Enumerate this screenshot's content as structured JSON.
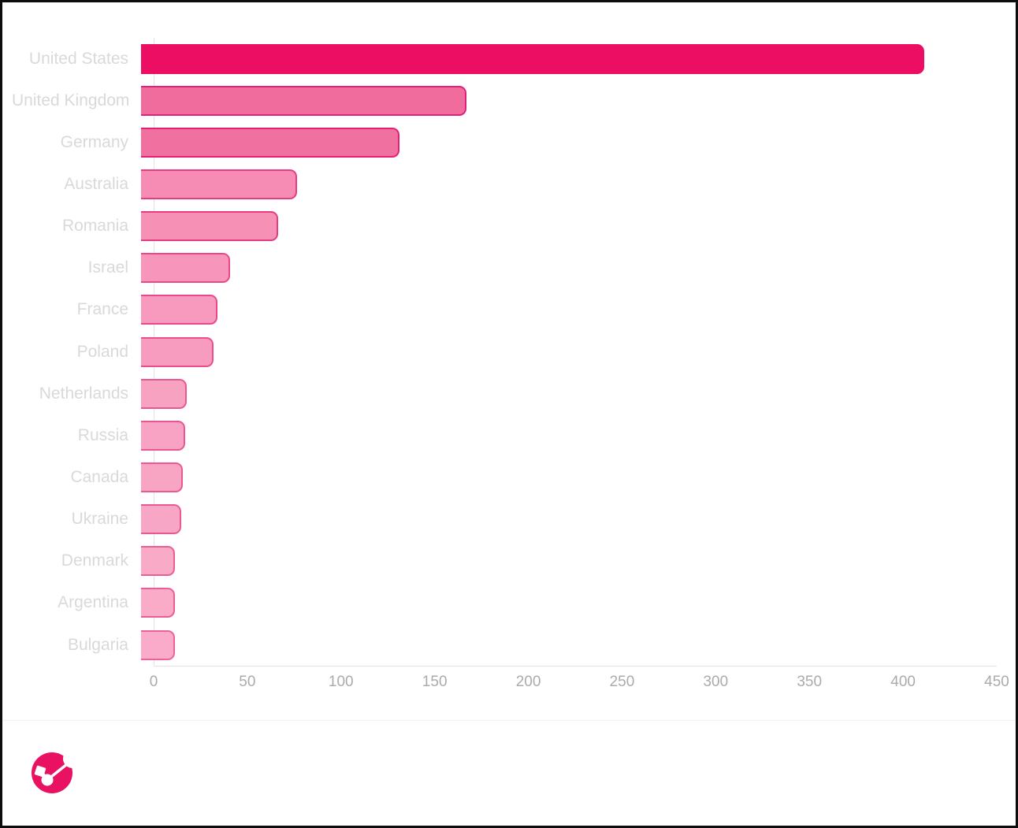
{
  "chart_data": {
    "type": "bar",
    "orientation": "horizontal",
    "title": "",
    "xlabel": "",
    "ylabel": "",
    "categories": [
      "United States",
      "United Kingdom",
      "Germany",
      "Australia",
      "Romania",
      "Israel",
      "France",
      "Poland",
      "Netherlands",
      "Russia",
      "Canada",
      "Ukraine",
      "Denmark",
      "Argentina",
      "Bulgaria"
    ],
    "values": [
      412,
      171,
      136,
      82,
      72,
      47,
      40,
      38,
      24,
      23,
      22,
      21,
      18,
      18,
      18
    ],
    "bar_fill_colors": [
      "#ec0e63",
      "#f06c9d",
      "#f0709f",
      "#f68cb3",
      "#f690b5",
      "#f795ba",
      "#f79abd",
      "#f79cbe",
      "#f8a2c2",
      "#f8a3c3",
      "#f8a5c4",
      "#f8a6c5",
      "#f9aac7",
      "#f9abc8",
      "#f9abc9"
    ],
    "bar_border_colors": [
      "#ec0e63",
      "#e32077",
      "#e32077",
      "#e63c82",
      "#e63c82",
      "#e9498b",
      "#e9498b",
      "#ea4e8d",
      "#eb5591",
      "#eb5591",
      "#ec5893",
      "#ec5893",
      "#ed5d95",
      "#ed5d95",
      "#ee6296"
    ],
    "xlim": [
      0,
      450
    ],
    "xticks": [
      "0",
      "50",
      "100",
      "150",
      "200",
      "250",
      "300",
      "350",
      "400",
      "450"
    ],
    "legend": "none",
    "grid": "off"
  },
  "style": {
    "category_label_color": "#d9d9d9",
    "tick_label_color": "#ababab",
    "axis_line_color": "#e3e3e3",
    "page_border_color": "#0d0d0d",
    "accent_color": "#e91262"
  },
  "footer": {
    "logo": "brand-logo"
  }
}
